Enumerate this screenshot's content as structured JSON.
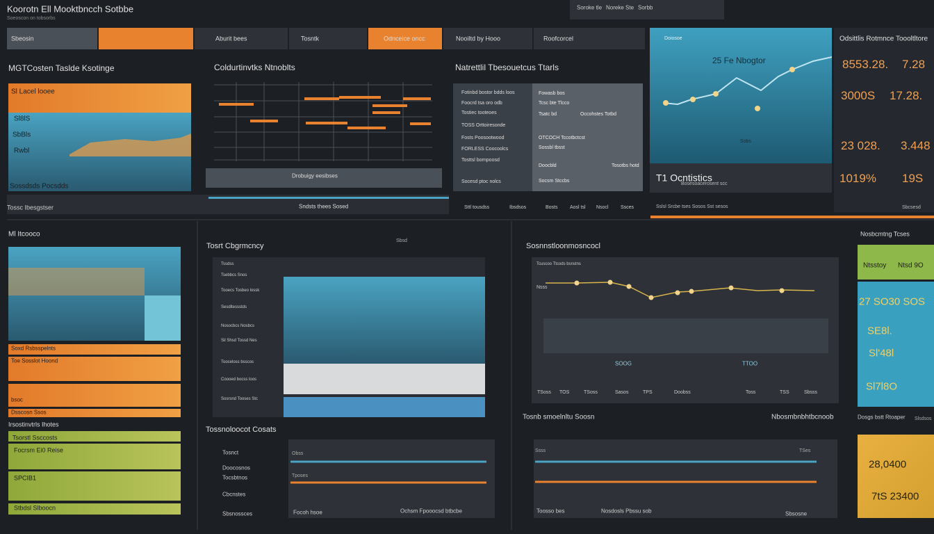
{
  "header": {
    "title": "Koorotn Ell Mooktbncch Sotbbe",
    "subtitle": "Soeoscon on tobsorbs",
    "buttons": [
      "Soroke tle",
      "Noreke Ste",
      "Sorbb"
    ]
  },
  "tabs": [
    "Sbeosin",
    "Aburit bees",
    "Tosntk",
    "Odnceice oncc",
    "Nooiltd by Hooo",
    "Roofcorcel"
  ],
  "summary": {
    "title": "MGTCosten Taslde Ksotinge",
    "items": [
      "Sl  Lacel looee",
      "Sl8lS",
      "SbBls",
      "Rwbl",
      "Sossdsds Pocsdds"
    ],
    "footer": "Tossc Ibesgstser"
  },
  "columns": {
    "title": "Coldurtinvtks Ntnoblts",
    "caption": "Drobuigy eesibses",
    "footer": "Sndsts thees Sosed"
  },
  "transactions": {
    "title": "Natrettlil Tbesouetcus Ttarls",
    "left": [
      "Fotinbd bostor bdds loos",
      "Foocrd tsa oro odb",
      "Tostiec tooteoes",
      "TOSS Orttoiresonde",
      "Fosts Poosootwood",
      "FORLESS Coocoolcs",
      "Tosttsl bornpoosd",
      "Socesd ptoc nolcs"
    ],
    "right": [
      "Fowasb bos",
      "Tcsc bte Tlcco",
      "Tsatc bd",
      "Occohstes Totbd",
      "OTCOCH Tccotbctcst",
      "Sossbl tbsst",
      "Doocbld",
      "Tosotbs hotd",
      "Socsm  Stccbs"
    ],
    "footer": [
      "Sttl tousdss",
      "Ibsdsos",
      "Bosts",
      "Aosl tsl",
      "Nsocl",
      "Ssces"
    ]
  },
  "monitor": {
    "label": "Doiosoe",
    "title": "25 Fe Nbogtor",
    "note": "Sobs",
    "caption": "T1 Ocntistics",
    "subcaption": "Bosesoacerosent scc",
    "footer": "Sslsl Srcbe tses Sosos Sst sesos",
    "side": "Sbcsesd"
  },
  "stats": {
    "title": "Odsittlis Rotmnce Toooltltore",
    "values": [
      "8553.28.",
      "7.28",
      "3000S",
      "17.28.",
      "23 028.",
      "3.448",
      "1019%",
      "19S"
    ]
  },
  "trend": {
    "title": "Ml Itcooco",
    "bars": [
      "Soxd Rsbsspelnts",
      "Toe Sosslot Hoond",
      "bsoc",
      "Dsscosn Ssos"
    ],
    "subtitle": "Irsostinvtrls Ihotes",
    "green": [
      "Tsorstl Ssccosts",
      "Focrsm Ei0 Reise",
      "SPCIB1",
      "Stbdsl Slboocn"
    ]
  },
  "usage": {
    "title": "Tosrt Cbgrmcncy",
    "label": "Sbsd",
    "rows": [
      "Tssdss",
      "Tsebbcs Snos",
      "Tooecs Tosbeo lossk",
      "Sesdltessstds",
      "Nosocbcs Nosbcs",
      "Sil Shsd Tossd Nes",
      "Tooceloss bsscos",
      "Coooed bocss loos",
      "Sosrsnd Tooses Stc"
    ]
  },
  "costs": {
    "title": "Tossnoloocot Cosats",
    "items": [
      "Tosnct",
      "Doocosnos",
      "Tocsbtnos",
      "Cbcnstes",
      "Sbsnossces"
    ],
    "labels": [
      "Obss",
      "Tposes"
    ],
    "footer": [
      "Focoh hsoe",
      "Ochsm Fpooocsd btbcbe"
    ]
  },
  "perf": {
    "title": "Sosnnstloonmosncocl",
    "legend": "Tcuscoo Ttcods bsnstns",
    "ylabel": "Nsss",
    "points": [
      "SOOG",
      "TTOO"
    ],
    "x": [
      "TSoss",
      "TOS",
      "TSoss",
      "Sasos",
      "TPS",
      "Doobss",
      "Toss",
      "TSS",
      "Sbsss"
    ],
    "footer": [
      "Tosnb smoelnltu Soosn",
      "Nbosmbnbhtbcnoob"
    ]
  },
  "flow": {
    "labels": [
      "Ssss",
      "TSes"
    ],
    "footer": [
      "Toosso bes",
      "Nosdosls Pbssu sob",
      "Sbsosne"
    ]
  },
  "side": {
    "title": "Nosbcmtng Tcses",
    "green": [
      "Ntsstoy",
      "Ntsd 9O"
    ],
    "values": [
      "27 SO30 SOS",
      "SE8l.",
      "Sl'48l",
      "Sl7l8O"
    ],
    "label": "Dosgs bstt Rtoaper",
    "note": "Slsdsos",
    "yellow": [
      "28,0400",
      "7tS 23400"
    ]
  }
}
